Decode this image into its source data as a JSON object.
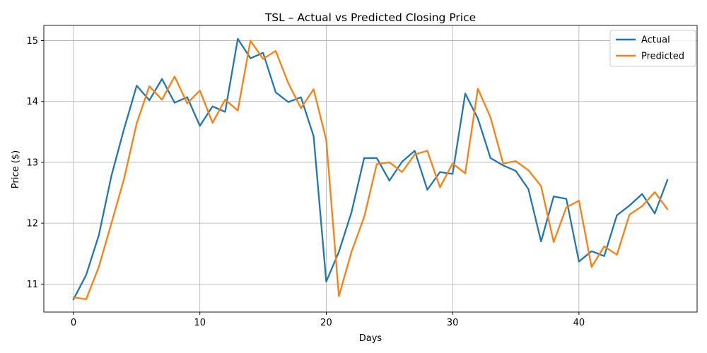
{
  "chart_data": {
    "type": "line",
    "title": "TSL – Actual vs Predicted Closing Price",
    "xlabel": "Days",
    "ylabel": "Price ($)",
    "xlim": [
      -2.35,
      49.35
    ],
    "ylim": [
      10.54,
      15.25
    ],
    "xticks": [
      0,
      10,
      20,
      30,
      40
    ],
    "yticks": [
      11,
      12,
      13,
      14,
      15
    ],
    "grid": true,
    "legend": "top-right",
    "x": [
      0,
      1,
      2,
      3,
      4,
      5,
      6,
      7,
      8,
      9,
      10,
      11,
      12,
      13,
      14,
      15,
      16,
      17,
      18,
      19,
      20,
      21,
      22,
      23,
      24,
      25,
      26,
      27,
      28,
      29,
      30,
      31,
      32,
      33,
      34,
      35,
      36,
      37,
      38,
      39,
      40,
      41,
      42,
      43,
      44,
      45,
      46,
      47
    ],
    "series": [
      {
        "name": "Actual",
        "color": "#1f77b4",
        "values": [
          10.75,
          11.15,
          11.8,
          12.78,
          13.55,
          14.26,
          14.02,
          14.37,
          13.98,
          14.07,
          13.6,
          13.92,
          13.83,
          15.03,
          14.71,
          14.8,
          14.15,
          13.99,
          14.07,
          13.43,
          11.04,
          11.53,
          12.18,
          13.07,
          13.07,
          12.7,
          13.01,
          13.19,
          12.55,
          12.84,
          12.81,
          14.13,
          13.72,
          13.07,
          12.95,
          12.86,
          12.56,
          11.7,
          12.44,
          12.4,
          11.37,
          11.54,
          11.46,
          12.13,
          12.29,
          12.48,
          12.16,
          12.71
        ]
      },
      {
        "name": "Predicted",
        "color": "#ff7f0e",
        "values": [
          10.78,
          10.75,
          11.28,
          12.0,
          12.73,
          13.64,
          14.25,
          14.03,
          14.41,
          13.97,
          14.18,
          13.65,
          14.03,
          13.85,
          15.0,
          14.7,
          14.83,
          14.3,
          13.89,
          14.2,
          13.37,
          10.8,
          11.53,
          12.1,
          12.97,
          13.0,
          12.84,
          13.13,
          13.19,
          12.59,
          12.98,
          12.82,
          14.21,
          13.74,
          12.98,
          13.02,
          12.87,
          12.61,
          11.69,
          12.26,
          12.37,
          11.28,
          11.62,
          11.48,
          12.14,
          12.28,
          12.51,
          12.23
        ]
      }
    ]
  }
}
